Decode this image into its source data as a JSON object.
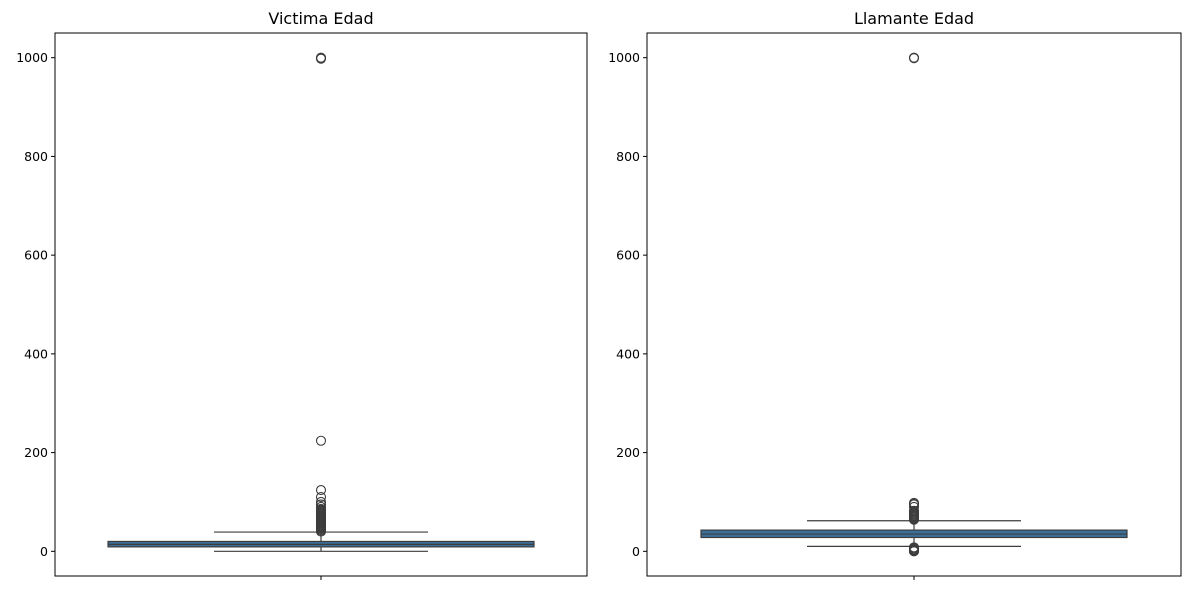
{
  "chart_data": [
    {
      "type": "boxplot",
      "title": "Victima Edad",
      "xlabel": "",
      "ylabel": "",
      "ylim": [
        -50,
        1050
      ],
      "yticks": [
        0,
        200,
        400,
        600,
        800,
        1000
      ],
      "box": {
        "q1": 9,
        "median": 14,
        "q3": 20,
        "whisker_low": 0,
        "whisker_high": 39
      },
      "outliers": [
        40,
        42,
        44,
        46,
        48,
        50,
        52,
        54,
        56,
        58,
        60,
        62,
        64,
        66,
        68,
        70,
        72,
        74,
        76,
        78,
        80,
        82,
        84,
        86,
        90,
        95,
        100,
        110,
        124,
        224,
        998,
        999,
        1000
      ],
      "colors": {
        "box": "#3a6f9a",
        "line": "#3d3d3d"
      }
    },
    {
      "type": "boxplot",
      "title": "Llamante Edad",
      "xlabel": "",
      "ylabel": "",
      "ylim": [
        -50,
        1050
      ],
      "yticks": [
        0,
        200,
        400,
        600,
        800,
        1000
      ],
      "box": {
        "q1": 28,
        "median": 35,
        "q3": 43,
        "whisker_low": 10,
        "whisker_high": 62
      },
      "outliers": [
        0,
        1,
        2,
        3,
        5,
        7,
        8,
        64,
        66,
        68,
        70,
        72,
        74,
        76,
        78,
        80,
        82,
        90,
        95,
        97,
        98,
        999,
        1000
      ],
      "colors": {
        "box": "#3a6f9a",
        "line": "#3d3d3d"
      }
    }
  ]
}
